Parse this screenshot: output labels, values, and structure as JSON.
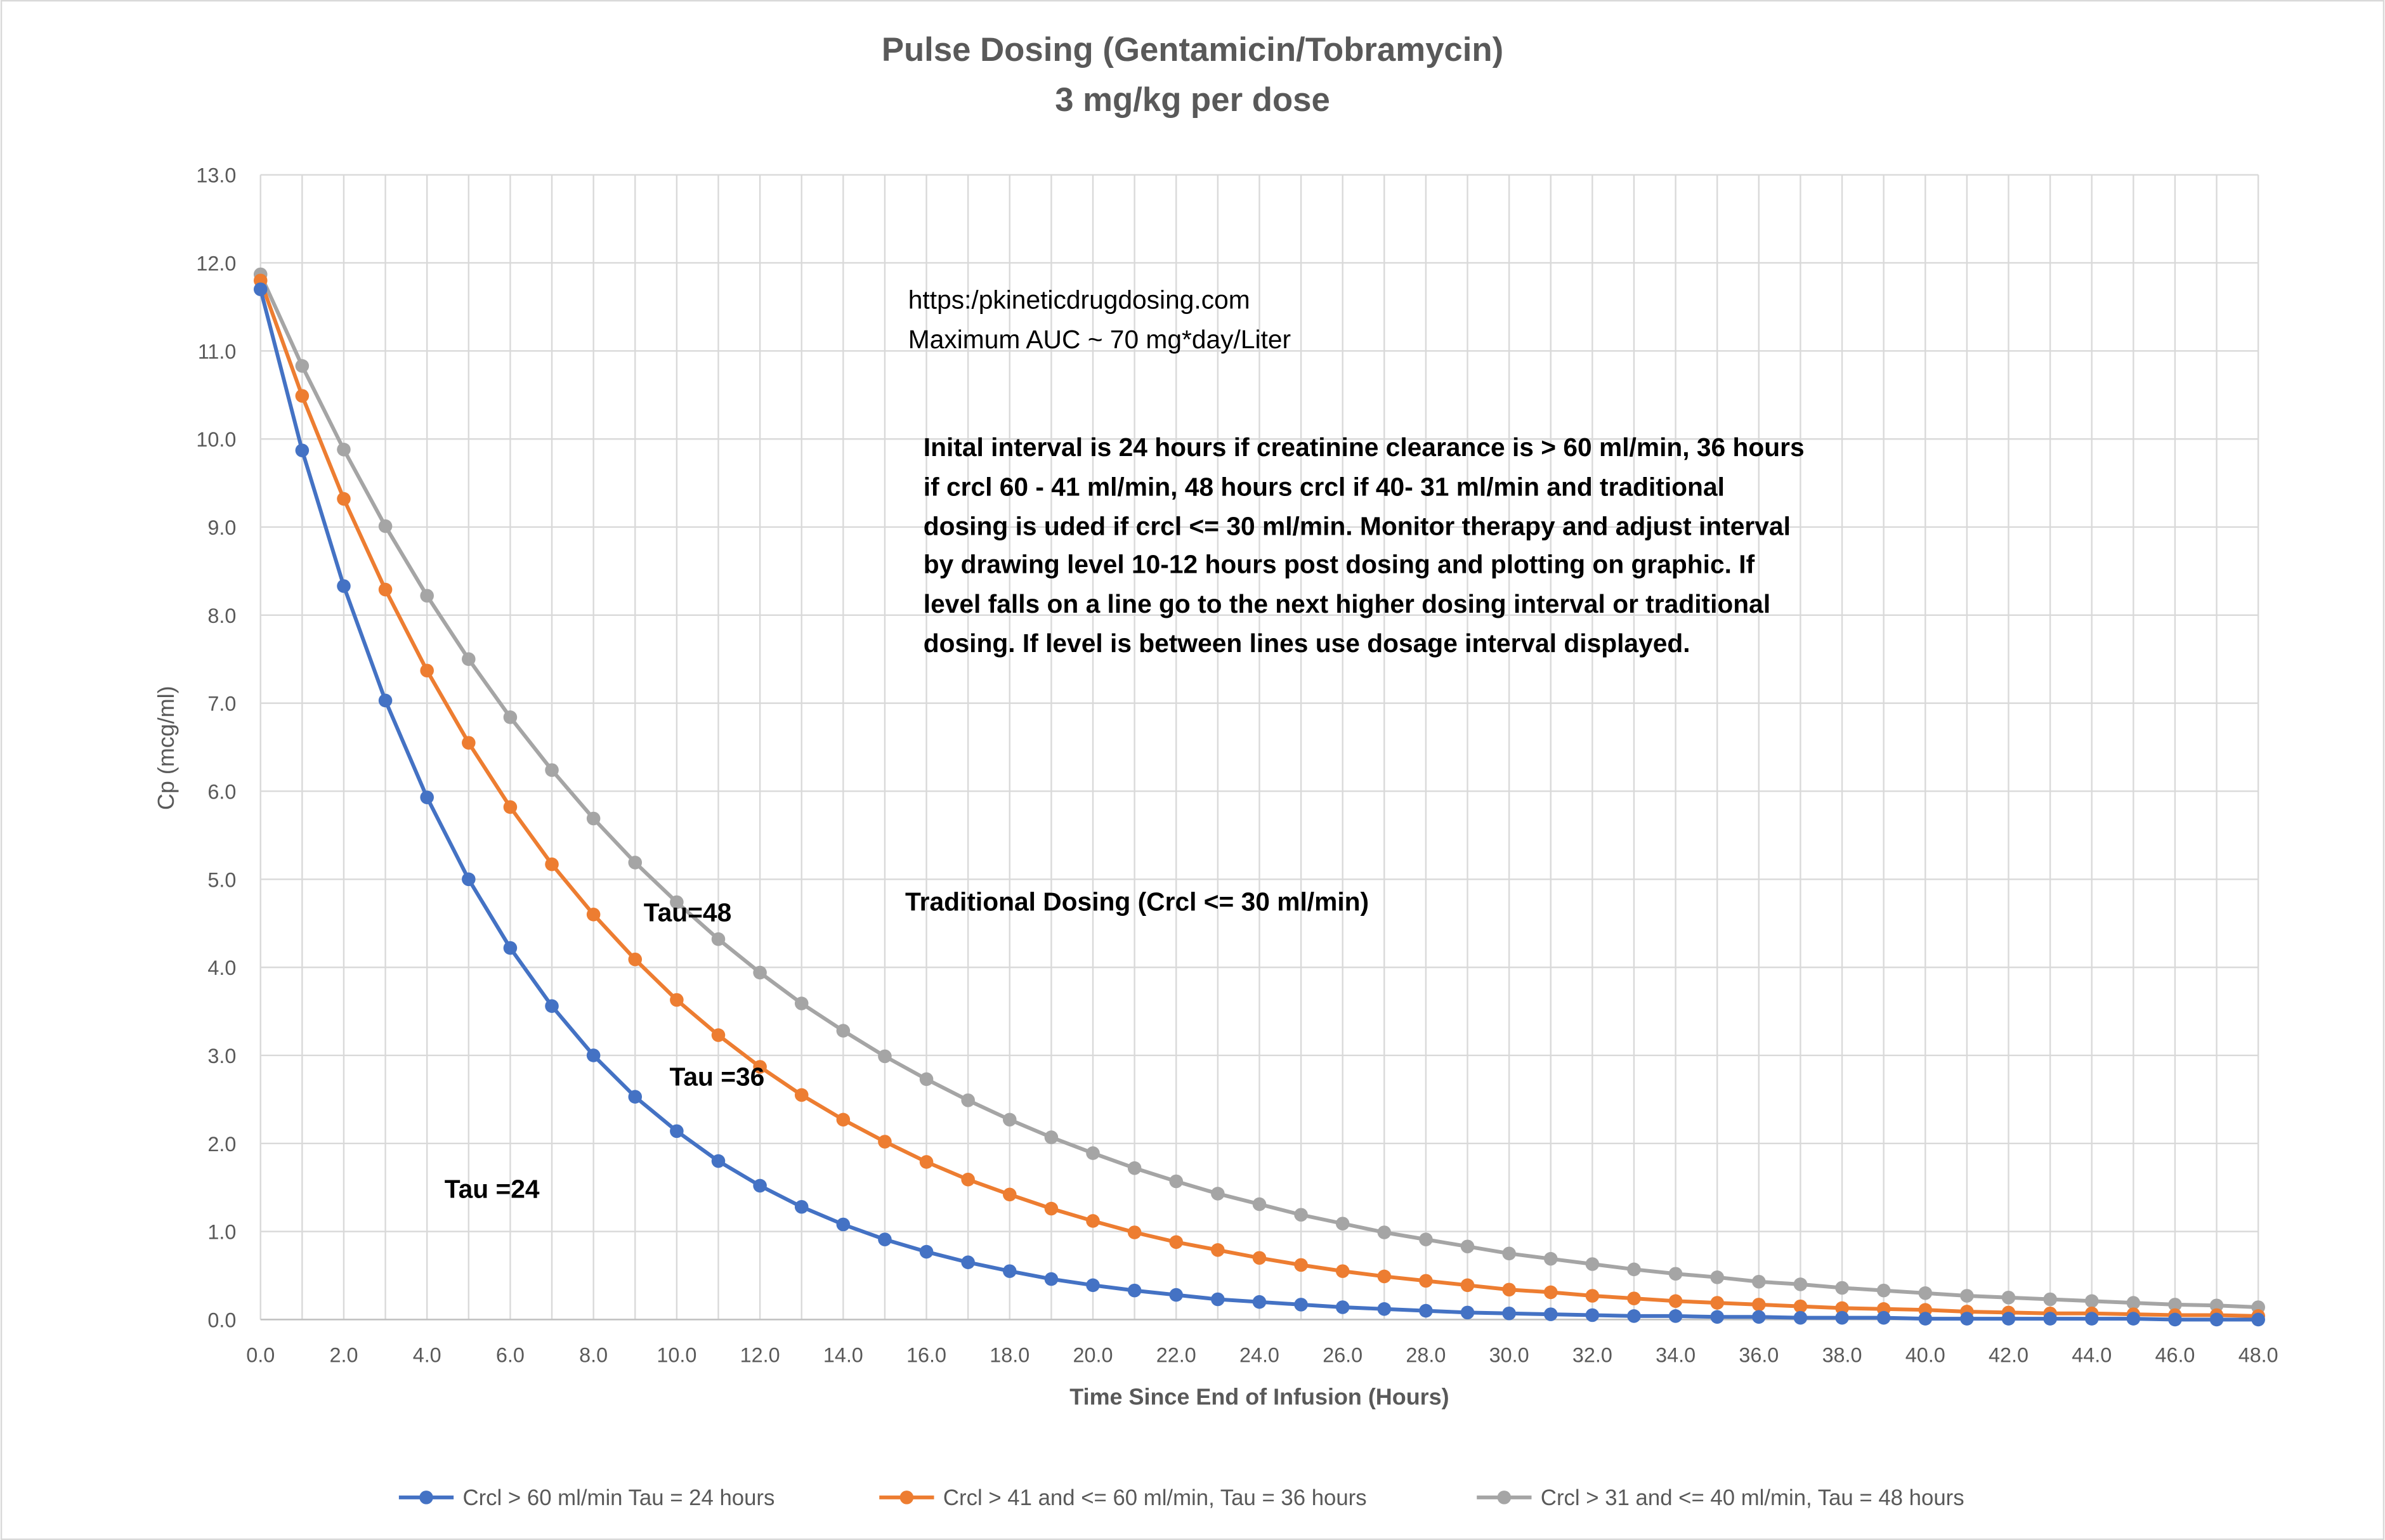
{
  "chart_data": {
    "type": "line",
    "title": "Pulse Dosing (Gentamicin/Tobramycin)",
    "subtitle": "3 mg/kg per dose",
    "xlabel": "Time Since End of Infusion (Hours)",
    "ylabel": "Cp (mcg/ml)",
    "xlim": [
      0,
      48
    ],
    "ylim": [
      0,
      13
    ],
    "x_tick_step": 2,
    "y_tick_step": 1,
    "grid": true,
    "legend_placement": "bottom",
    "x": [
      0,
      1,
      2,
      3,
      4,
      5,
      6,
      7,
      8,
      9,
      10,
      11,
      12,
      13,
      14,
      15,
      16,
      17,
      18,
      19,
      20,
      21,
      22,
      23,
      24,
      25,
      26,
      27,
      28,
      29,
      30,
      31,
      32,
      33,
      34,
      35,
      36,
      37,
      38,
      39,
      40,
      41,
      42,
      43,
      44,
      45,
      46,
      47,
      48
    ],
    "series": [
      {
        "name": "Crcl > 60 ml/min Tau = 24 hours",
        "color": "#4472C4",
        "values": [
          11.7,
          9.87,
          8.33,
          7.03,
          5.93,
          5.0,
          4.22,
          3.56,
          3.0,
          2.53,
          2.14,
          1.8,
          1.52,
          1.28,
          1.08,
          0.91,
          0.77,
          0.65,
          0.55,
          0.46,
          0.39,
          0.33,
          0.28,
          0.23,
          0.2,
          0.17,
          0.14,
          0.12,
          0.1,
          0.08,
          0.07,
          0.06,
          0.05,
          0.04,
          0.04,
          0.03,
          0.03,
          0.02,
          0.02,
          0.02,
          0.01,
          0.01,
          0.01,
          0.01,
          0.01,
          0.01,
          0.0,
          0.0,
          0.0
        ]
      },
      {
        "name": "Crcl > 41 and <= 60 ml/min, Tau = 36 hours",
        "color": "#ED7D31",
        "values": [
          11.8,
          10.49,
          9.32,
          8.29,
          7.37,
          6.55,
          5.82,
          5.17,
          4.6,
          4.09,
          3.63,
          3.23,
          2.87,
          2.55,
          2.27,
          2.02,
          1.79,
          1.59,
          1.42,
          1.26,
          1.12,
          0.99,
          0.88,
          0.79,
          0.7,
          0.62,
          0.55,
          0.49,
          0.44,
          0.39,
          0.34,
          0.31,
          0.27,
          0.24,
          0.21,
          0.19,
          0.17,
          0.15,
          0.13,
          0.12,
          0.11,
          0.09,
          0.08,
          0.07,
          0.07,
          0.06,
          0.05,
          0.05,
          0.04
        ]
      },
      {
        "name": "Crcl > 31 and <= 40 ml/min, Tau = 48 hours",
        "color": "#A5A5A5",
        "values": [
          11.87,
          10.83,
          9.88,
          9.01,
          8.22,
          7.5,
          6.84,
          6.24,
          5.69,
          5.19,
          4.74,
          4.32,
          3.94,
          3.59,
          3.28,
          2.99,
          2.73,
          2.49,
          2.27,
          2.07,
          1.89,
          1.72,
          1.57,
          1.43,
          1.31,
          1.19,
          1.09,
          0.99,
          0.91,
          0.83,
          0.75,
          0.69,
          0.63,
          0.57,
          0.52,
          0.48,
          0.43,
          0.4,
          0.36,
          0.33,
          0.3,
          0.27,
          0.25,
          0.23,
          0.21,
          0.19,
          0.17,
          0.16,
          0.14
        ]
      }
    ],
    "annotations": {
      "url": "https:/pkineticdrugdosing.com",
      "auc": "Maximum AUC ~ 70 mg*day/Liter",
      "instructions": [
        "Inital interval is 24 hours if creatinine clearance is > 60 ml/min, 36 hours",
        "if crcl 60 - 41 ml/min, 48 hours crcl if 40- 31 ml/min and traditional",
        "dosing is uded if crcl <= 30 ml/min. Monitor therapy and adjust interval",
        "by drawing level 10-12 hours post dosing and plotting on graphic.  If",
        "level falls on a line go to the next higher dosing interval or traditional",
        "dosing. If level is between lines use dosage interval displayed."
      ],
      "traditional": "Traditional Dosing (Crcl <= 30 ml/min)",
      "tau48": "Tau=48",
      "tau36": "Tau =36",
      "tau24": "Tau =24"
    }
  }
}
